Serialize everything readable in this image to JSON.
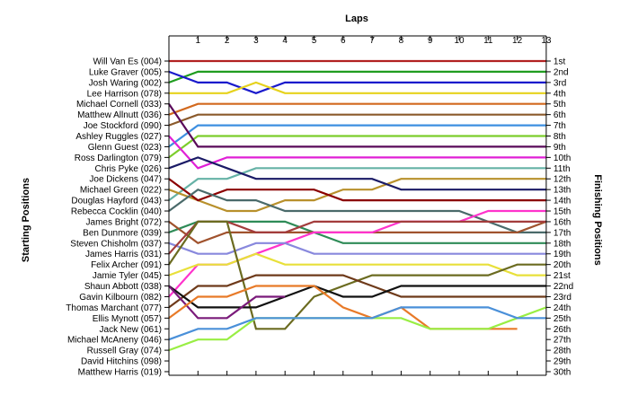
{
  "chart_data": {
    "type": "line",
    "title": "",
    "xlabel": "Laps",
    "ylabel_left": "Starting Positions",
    "ylabel_right": "Finishing Positions",
    "x_ticks": [
      "1",
      "2",
      "3",
      "4",
      "5",
      "6",
      "7",
      "8",
      "9",
      "10",
      "11",
      "12",
      "13"
    ],
    "x_range": [
      0,
      13
    ],
    "y_range": [
      1,
      30
    ],
    "grid": false,
    "legend": "none",
    "starting_labels": [
      "Will Van Es (004)",
      "Luke Graver (005)",
      "Josh Waring (002)",
      "Lee Harrison (078)",
      "Michael Cornell (033)",
      "Matthew Allnutt (036)",
      "Joe Stockford (090)",
      "Ashley Ruggles (027)",
      "Glenn Guest (023)",
      "Ross Darlington (079)",
      "Chris Pyke (026)",
      "Joe Dickens (047)",
      "Michael Green (022)",
      "Douglas Hayford (043)",
      "Rebecca Cocklin (040)",
      "James Bright (072)",
      "Ben Dunmore (039)",
      "Steven Chisholm (037)",
      "James Harris (031)",
      "Felix Archer (091)",
      "Jamie Tyler (045)",
      "Shaun Abbott (038)",
      "Gavin Kilbourn (082)",
      "Thomas Marchant (077)",
      "Ellis Mynott (057)",
      "Jack New (061)",
      "Michael McAneny (046)",
      "Russell Gray (074)",
      "David Hitchins (098)",
      "Matthew Harris (019)"
    ],
    "finishing_labels": [
      "1st",
      "2nd",
      "3rd",
      "4th",
      "5th",
      "6th",
      "7th",
      "8th",
      "9th",
      "10th",
      "11th",
      "12th",
      "13th",
      "14th",
      "15th",
      "16th",
      "17th",
      "18th",
      "19th",
      "20th",
      "21st",
      "22nd",
      "23rd",
      "24th",
      "25th",
      "26th",
      "27th",
      "28th",
      "29th",
      "30th"
    ],
    "series": [
      {
        "color": "#b22222",
        "values": [
          1,
          1,
          1,
          1,
          1,
          1,
          1,
          1,
          1,
          1,
          1,
          1,
          1,
          1
        ]
      },
      {
        "color": "#1f9c1f",
        "values": [
          3,
          2,
          2,
          2,
          2,
          2,
          2,
          2,
          2,
          2,
          2,
          2,
          2,
          2
        ]
      },
      {
        "color": "#1a1acc",
        "values": [
          2,
          3,
          3,
          4,
          3,
          3,
          3,
          3,
          3,
          3,
          3,
          3,
          3,
          3
        ]
      },
      {
        "color": "#e6d21c",
        "values": [
          4,
          4,
          4,
          3,
          4,
          4,
          4,
          4,
          4,
          4,
          4,
          4,
          4,
          4
        ]
      },
      {
        "color": "#d2691e",
        "values": [
          6,
          5,
          5,
          5,
          5,
          5,
          5,
          5,
          5,
          5,
          5,
          5,
          5,
          5
        ]
      },
      {
        "color": "#8b5a2b",
        "values": [
          7,
          6,
          6,
          6,
          6,
          6,
          6,
          6,
          6,
          6,
          6,
          6,
          6,
          6
        ]
      },
      {
        "color": "#3d8fe0",
        "values": [
          9,
          7,
          7,
          7,
          7,
          7,
          7,
          7,
          7,
          7,
          7,
          7,
          7,
          7
        ]
      },
      {
        "color": "#7ccd2c",
        "values": [
          10,
          8,
          8,
          8,
          8,
          8,
          8,
          8,
          8,
          8,
          8,
          8,
          8,
          8
        ]
      },
      {
        "color": "#5a0a5a",
        "values": [
          5,
          9,
          9,
          9,
          9,
          9,
          9,
          9,
          9,
          9,
          9,
          9,
          9,
          9
        ]
      },
      {
        "color": "#e020d6",
        "values": [
          8,
          11,
          10,
          10,
          10,
          10,
          10,
          10,
          10,
          10,
          10,
          10,
          10,
          10
        ]
      },
      {
        "color": "#66b2a6",
        "values": [
          14,
          12,
          12,
          11,
          11,
          11,
          11,
          11,
          11,
          11,
          11,
          11,
          11,
          11
        ]
      },
      {
        "color": "#b8902b",
        "values": [
          13,
          14,
          15,
          15,
          14,
          14,
          13,
          13,
          12,
          12,
          12,
          12,
          12,
          12
        ]
      },
      {
        "color": "#1a1a66",
        "values": [
          11,
          10,
          11,
          12,
          12,
          12,
          12,
          12,
          13,
          13,
          13,
          13,
          13,
          13
        ]
      },
      {
        "color": "#8b0000",
        "values": [
          12,
          14,
          13,
          13,
          13,
          13,
          14,
          14,
          14,
          14,
          14,
          14,
          14,
          14
        ]
      },
      {
        "color": "#4a6a6a",
        "values": [
          15,
          13,
          14,
          14,
          15,
          15,
          15,
          15,
          15,
          15,
          15,
          16,
          17,
          17
        ]
      },
      {
        "color": "#2e8b57",
        "values": [
          17,
          16,
          16,
          16,
          16,
          17,
          18,
          18,
          18,
          18,
          18,
          18,
          18,
          18
        ]
      },
      {
        "color": "#a0522d",
        "values": [
          16,
          18,
          17,
          17,
          17,
          17,
          17,
          17,
          17,
          17,
          17,
          17,
          17,
          16
        ]
      },
      {
        "color": "#ff33cc",
        "values": [
          23,
          20,
          20,
          19,
          18,
          17,
          17,
          17,
          16,
          16,
          16,
          15,
          15,
          15
        ]
      },
      {
        "color": "#8888dd",
        "values": [
          18,
          19,
          19,
          18,
          18,
          19,
          19,
          19,
          19,
          19,
          19,
          19,
          19,
          19
        ]
      },
      {
        "color": "#a33c3c",
        "values": [
          19,
          16,
          16,
          17,
          17,
          16,
          16,
          16,
          16,
          16,
          16,
          16,
          16,
          16
        ]
      },
      {
        "color": "#e8e03a",
        "values": [
          21,
          20,
          20,
          19,
          20,
          20,
          20,
          20,
          20,
          20,
          20,
          20,
          21,
          21
        ]
      },
      {
        "color": "#6b6b20",
        "values": [
          20,
          16,
          16,
          26,
          26,
          23,
          22,
          21,
          21,
          21,
          21,
          21,
          20,
          20
        ]
      },
      {
        "color": "#6e3a1a",
        "values": [
          24,
          22,
          22,
          21,
          21,
          21,
          21,
          22,
          23,
          23,
          23,
          23,
          23,
          23
        ]
      },
      {
        "color": "#111111",
        "values": [
          22,
          24,
          24,
          24,
          23,
          22,
          23,
          23,
          22,
          22,
          22,
          22,
          22,
          22
        ]
      },
      {
        "color": "#7a1a7a",
        "values": [
          22,
          25,
          25,
          23,
          23
        ]
      },
      {
        "color": "#e87a28",
        "values": [
          25,
          23,
          23,
          22,
          22,
          22,
          24,
          25,
          24,
          26,
          26,
          26,
          26
        ]
      },
      {
        "color": "#99ee44",
        "values": [
          28,
          27,
          27,
          25,
          25,
          25,
          25,
          25,
          25,
          26,
          26,
          26,
          25,
          24
        ]
      },
      {
        "color": "#4a90d9",
        "values": [
          27,
          26,
          26,
          25,
          25,
          25,
          25,
          25,
          24,
          24,
          24,
          24,
          25,
          25
        ]
      }
    ]
  }
}
